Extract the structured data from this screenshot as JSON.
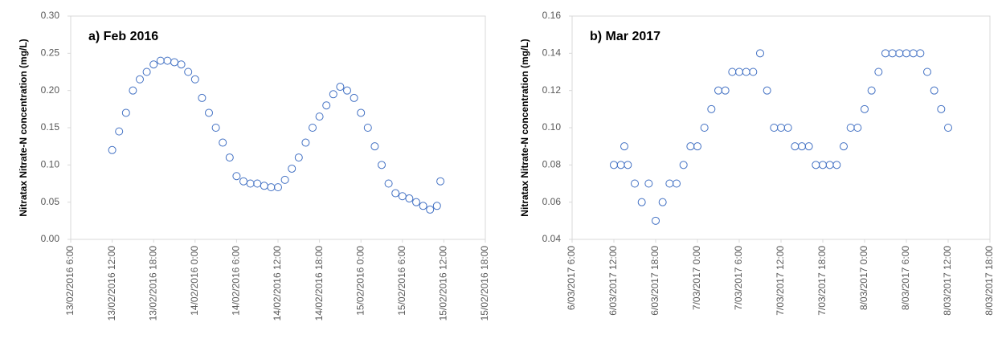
{
  "chart_data": [
    {
      "type": "scatter",
      "annotation": "a) Feb 2016",
      "y_label": "Nitratax Nitrate-N concentration (mg/L)",
      "color": "#4472c4",
      "xlim": [
        0,
        60
      ],
      "xticks": [
        {
          "value": 0,
          "label": "13/02/2016 6:00"
        },
        {
          "value": 6,
          "label": "13/02/2016 12:00"
        },
        {
          "value": 12,
          "label": "13/02/2016 18:00"
        },
        {
          "value": 18,
          "label": "14/02/2016 0:00"
        },
        {
          "value": 24,
          "label": "14/02/2016 6:00"
        },
        {
          "value": 30,
          "label": "14/02/2016 12:00"
        },
        {
          "value": 36,
          "label": "14/02/2016 18:00"
        },
        {
          "value": 42,
          "label": "15/02/2016 0:00"
        },
        {
          "value": 48,
          "label": "15/02/2016 6:00"
        },
        {
          "value": 54,
          "label": "15/02/2016 12:00"
        },
        {
          "value": 60,
          "label": "15/02/2016 18:00"
        }
      ],
      "ylim": [
        0,
        0.3
      ],
      "yticks": [
        {
          "value": 0,
          "label": "0.00"
        },
        {
          "value": 0.05,
          "label": "0.05"
        },
        {
          "value": 0.1,
          "label": "0.10"
        },
        {
          "value": 0.15,
          "label": "0.15"
        },
        {
          "value": 0.2,
          "label": "0.20"
        },
        {
          "value": 0.25,
          "label": "0.25"
        },
        {
          "value": 0.3,
          "label": "0.30"
        }
      ],
      "x": [
        6,
        7,
        8,
        9,
        10,
        11,
        12,
        13,
        14,
        15,
        16,
        17,
        18,
        19,
        20,
        21,
        22,
        23,
        24,
        25,
        26,
        27,
        28,
        29,
        30,
        31,
        32,
        33,
        34,
        35,
        36,
        37,
        38,
        39,
        40,
        41,
        42,
        43,
        44,
        45,
        46,
        47,
        48,
        49,
        50,
        51,
        52,
        53,
        53.5
      ],
      "y": [
        0.12,
        0.145,
        0.17,
        0.2,
        0.215,
        0.225,
        0.235,
        0.24,
        0.24,
        0.238,
        0.235,
        0.225,
        0.215,
        0.19,
        0.17,
        0.15,
        0.13,
        0.11,
        0.085,
        0.078,
        0.075,
        0.075,
        0.072,
        0.07,
        0.07,
        0.08,
        0.095,
        0.11,
        0.13,
        0.15,
        0.165,
        0.18,
        0.195,
        0.205,
        0.2,
        0.19,
        0.17,
        0.15,
        0.125,
        0.1,
        0.075,
        0.062,
        0.058,
        0.055,
        0.05,
        0.045,
        0.04,
        0.045,
        0.078
      ]
    },
    {
      "type": "scatter",
      "annotation": "b) Mar 2017",
      "y_label": "Nitratax Nitrate-N concentration (mg/L)",
      "color": "#4472c4",
      "xlim": [
        0,
        60
      ],
      "xticks": [
        {
          "value": 0,
          "label": "6/03/2017 6:00"
        },
        {
          "value": 6,
          "label": "6/03/2017 12:00"
        },
        {
          "value": 12,
          "label": "6/03/2017 18:00"
        },
        {
          "value": 18,
          "label": "7/03/2017 0:00"
        },
        {
          "value": 24,
          "label": "7/03/2017 6:00"
        },
        {
          "value": 30,
          "label": "7/03/2017 12:00"
        },
        {
          "value": 36,
          "label": "7/03/2017 18:00"
        },
        {
          "value": 42,
          "label": "8/03/2017 0:00"
        },
        {
          "value": 48,
          "label": "8/03/2017 6:00"
        },
        {
          "value": 54,
          "label": "8/03/2017 12:00"
        },
        {
          "value": 60,
          "label": "8/03/2017 18:00"
        }
      ],
      "ylim": [
        0.04,
        0.16
      ],
      "yticks": [
        {
          "value": 0.04,
          "label": "0.04"
        },
        {
          "value": 0.06,
          "label": "0.06"
        },
        {
          "value": 0.08,
          "label": "0.08"
        },
        {
          "value": 0.1,
          "label": "0.10"
        },
        {
          "value": 0.12,
          "label": "0.12"
        },
        {
          "value": 0.14,
          "label": "0.14"
        },
        {
          "value": 0.16,
          "label": "0.16"
        }
      ],
      "x": [
        6,
        7,
        7.5,
        8,
        9,
        10,
        11,
        12,
        13,
        14,
        15,
        16,
        17,
        18,
        19,
        20,
        21,
        22,
        23,
        24,
        25,
        26,
        27,
        28,
        29,
        30,
        31,
        32,
        33,
        34,
        35,
        36,
        37,
        38,
        39,
        40,
        41,
        42,
        43,
        44,
        45,
        46,
        47,
        48,
        49,
        50,
        51,
        52,
        53,
        54
      ],
      "y": [
        0.08,
        0.08,
        0.09,
        0.08,
        0.07,
        0.06,
        0.07,
        0.05,
        0.06,
        0.07,
        0.07,
        0.08,
        0.09,
        0.09,
        0.1,
        0.11,
        0.12,
        0.12,
        0.13,
        0.13,
        0.13,
        0.13,
        0.14,
        0.12,
        0.1,
        0.1,
        0.1,
        0.09,
        0.09,
        0.09,
        0.08,
        0.08,
        0.08,
        0.08,
        0.09,
        0.1,
        0.1,
        0.11,
        0.12,
        0.13,
        0.14,
        0.14,
        0.14,
        0.14,
        0.14,
        0.14,
        0.13,
        0.12,
        0.11,
        0.1
      ]
    }
  ]
}
